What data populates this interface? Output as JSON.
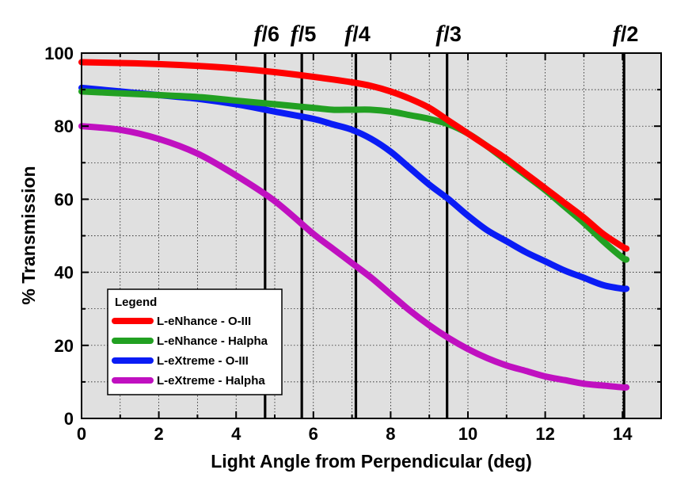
{
  "chart_data": {
    "type": "line",
    "title": "",
    "xlabel": "Light Angle from Perpendicular (deg)",
    "ylabel": "% Transmission",
    "xlim": [
      0,
      15
    ],
    "ylim": [
      0,
      100
    ],
    "xticks": [
      0,
      2,
      4,
      6,
      8,
      10,
      12,
      14
    ],
    "yticks": [
      0,
      20,
      40,
      60,
      80,
      100
    ],
    "x_tick_labels": [
      "0",
      "2",
      "4",
      "6",
      "8",
      "10",
      "12",
      "14"
    ],
    "y_tick_labels": [
      "0",
      "20",
      "40",
      "60",
      "80",
      "100"
    ],
    "grid": true,
    "background": "#e0e0e0",
    "legend": {
      "title": "Legend",
      "placement": "lower-left",
      "entries": [
        "L-eNhance - O-III",
        "L-eNhance - Halpha",
        "L-eXtreme - O-III",
        "L-eXtreme - Halpha"
      ]
    },
    "series": [
      {
        "name": "L-eNhance - O-III",
        "color": "#ff0000",
        "x": [
          0,
          1,
          2,
          3,
          4,
          5,
          6,
          7,
          7.5,
          8,
          8.5,
          9,
          9.5,
          10,
          10.5,
          11,
          11.5,
          12,
          12.5,
          13,
          13.5,
          14,
          14.1
        ],
        "y": [
          97.5,
          97.3,
          97,
          96.5,
          95.8,
          94.8,
          93.5,
          92,
          91,
          89.5,
          87.5,
          85,
          81.5,
          78,
          74.5,
          71,
          67,
          63,
          59,
          55,
          50.5,
          47,
          46.5
        ]
      },
      {
        "name": "L-eNhance - Halpha",
        "color": "#22a022",
        "x": [
          0,
          1,
          2,
          3,
          4,
          5,
          6,
          6.5,
          7,
          7.5,
          8,
          8.5,
          9,
          9.5,
          10,
          10.5,
          11,
          11.5,
          12,
          12.5,
          13,
          13.5,
          14,
          14.1
        ],
        "y": [
          89.5,
          89,
          88.5,
          88,
          87,
          86,
          85,
          84.5,
          84.5,
          84.5,
          84,
          83,
          82,
          80.5,
          78,
          74.5,
          70.5,
          66.5,
          62.5,
          58,
          53.5,
          48.5,
          44,
          43.5
        ]
      },
      {
        "name": "L-eXtreme - O-III",
        "color": "#0a1cf5",
        "x": [
          0,
          1,
          2,
          3,
          4,
          5,
          6,
          6.5,
          7,
          7.5,
          8,
          8.5,
          9,
          9.5,
          10,
          10.5,
          11,
          11.5,
          12,
          12.5,
          13,
          13.5,
          14,
          14.1
        ],
        "y": [
          90.5,
          89.5,
          88.5,
          87.5,
          86,
          84,
          82,
          80.5,
          79,
          76.5,
          73,
          68.5,
          64,
          60,
          55.5,
          51.5,
          48.5,
          45.5,
          43,
          40.5,
          38.5,
          36.5,
          35.5,
          35.5
        ]
      },
      {
        "name": "L-eXtreme - Halpha",
        "color": "#c010c0",
        "x": [
          0,
          1,
          2,
          3,
          4,
          5,
          6,
          6.5,
          7,
          7.5,
          8,
          8.5,
          9,
          9.5,
          10,
          10.5,
          11,
          11.5,
          12,
          12.5,
          13,
          13.5,
          14,
          14.1
        ],
        "y": [
          80,
          79,
          76.5,
          72.5,
          66.5,
          59.5,
          50.5,
          46.5,
          42.5,
          38.5,
          34,
          29.5,
          25.5,
          22,
          19,
          16.5,
          14.5,
          13,
          11.5,
          10.5,
          9.5,
          9,
          8.5,
          8.5
        ]
      }
    ],
    "annotations": [
      {
        "label": "/6",
        "symbol": "f",
        "x": 4.75
      },
      {
        "label": "/5",
        "symbol": "f",
        "x": 5.7
      },
      {
        "label": "/4",
        "symbol": "f",
        "x": 7.1
      },
      {
        "label": "/3",
        "symbol": "f",
        "x": 9.46
      },
      {
        "label": "/2",
        "symbol": "f",
        "x": 14.04
      }
    ]
  }
}
